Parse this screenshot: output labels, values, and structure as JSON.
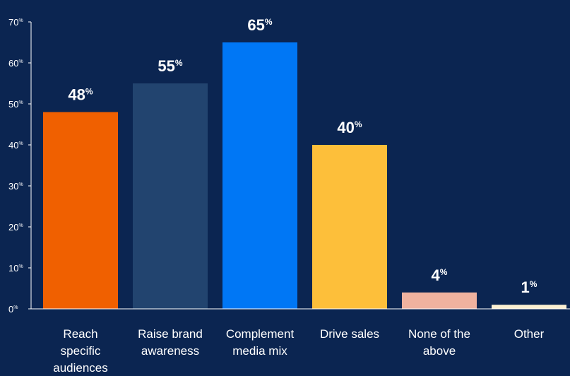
{
  "chart_data": {
    "type": "bar",
    "title": "",
    "xlabel": "",
    "ylabel": "",
    "ylim": [
      0,
      70
    ],
    "yticks": [
      0,
      10,
      20,
      30,
      40,
      50,
      60,
      70
    ],
    "ytick_suffix": "%",
    "grid": false,
    "legend": "none",
    "categories": [
      [
        "Reach",
        "specific",
        "audiences"
      ],
      [
        "Raise brand",
        "awareness"
      ],
      [
        "Complement",
        "media mix"
      ],
      [
        "Drive sales"
      ],
      [
        "None of the",
        "above"
      ],
      [
        "Other"
      ]
    ],
    "values": [
      48,
      55,
      65,
      40,
      4,
      1
    ],
    "value_labels": [
      "48",
      "55",
      "65",
      "40",
      "4",
      "1"
    ],
    "value_suffix": "%",
    "colors": [
      "#f06000",
      "#22446f",
      "#0077f5",
      "#fdbf3a",
      "#efb29f",
      "#fbf0d2"
    ],
    "background": "#0b2551",
    "axis_color": "#ffffff"
  }
}
